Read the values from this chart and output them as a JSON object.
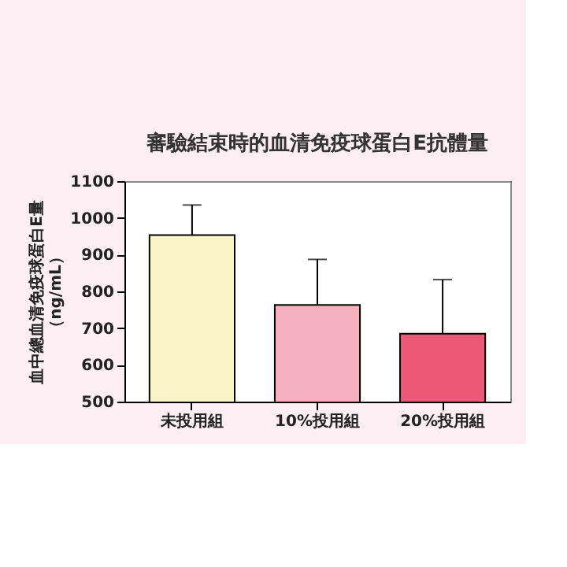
{
  "chart_data": {
    "type": "bar",
    "title": "審驗結束時的血清免疫球蛋白E抗體量",
    "ylabel": "血中總血清免疫球蛋白E量（ng/mL）",
    "categories": [
      "未投用組",
      "10%投用組",
      "20%投用組"
    ],
    "values": [
      953,
      763,
      685
    ],
    "colors": [
      "#f7f5c8",
      "#f5b0c0",
      "#ee5877"
    ],
    "errors": [
      [
        953,
        1035
      ],
      [
        763,
        887
      ],
      [
        685,
        832
      ]
    ],
    "ylim": [
      500,
      1100
    ],
    "yticks": [
      500,
      600,
      700,
      800,
      900,
      1000,
      1100
    ]
  }
}
